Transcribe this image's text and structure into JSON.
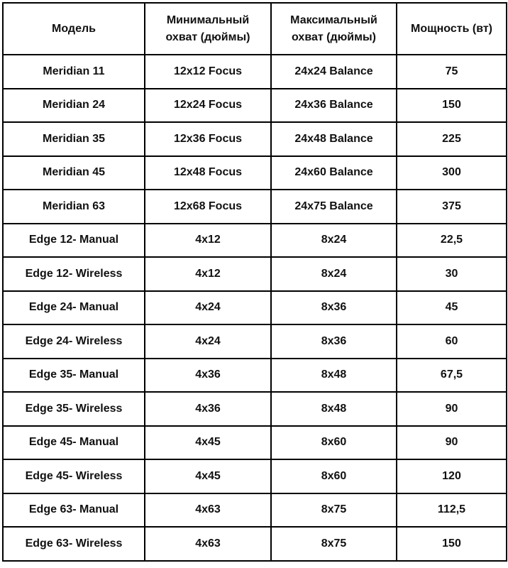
{
  "table": {
    "headers": [
      "Модель",
      "Минимальный охват (дюймы)",
      "Максимальный охват (дюймы)",
      "Мощность (вт)"
    ],
    "rows": [
      [
        "Meridian 11",
        "12x12 Focus",
        "24x24 Balance",
        "75"
      ],
      [
        "Meridian 24",
        "12x24 Focus",
        "24x36 Balance",
        "150"
      ],
      [
        "Meridian 35",
        "12x36 Focus",
        "24x48 Balance",
        "225"
      ],
      [
        "Meridian 45",
        "12x48 Focus",
        "24x60 Balance",
        "300"
      ],
      [
        "Meridian 63",
        "12x68 Focus",
        "24x75 Balance",
        "375"
      ],
      [
        "Edge 12- Manual",
        "4x12",
        "8x24",
        "22,5"
      ],
      [
        "Edge 12- Wireless",
        "4x12",
        "8x24",
        "30"
      ],
      [
        "Edge 24- Manual",
        "4x24",
        "8x36",
        "45"
      ],
      [
        "Edge 24- Wireless",
        "4x24",
        "8x36",
        "60"
      ],
      [
        "Edge 35- Manual",
        "4x36",
        "8x48",
        "67,5"
      ],
      [
        "Edge 35- Wireless",
        "4x36",
        "8x48",
        "90"
      ],
      [
        "Edge 45- Manual",
        "4x45",
        "8x60",
        "90"
      ],
      [
        "Edge 45- Wireless",
        "4x45",
        "8x60",
        "120"
      ],
      [
        "Edge 63- Manual",
        "4x63",
        "8x75",
        "112,5"
      ],
      [
        "Edge 63- Wireless",
        "4x63",
        "8x75",
        "150"
      ]
    ]
  }
}
